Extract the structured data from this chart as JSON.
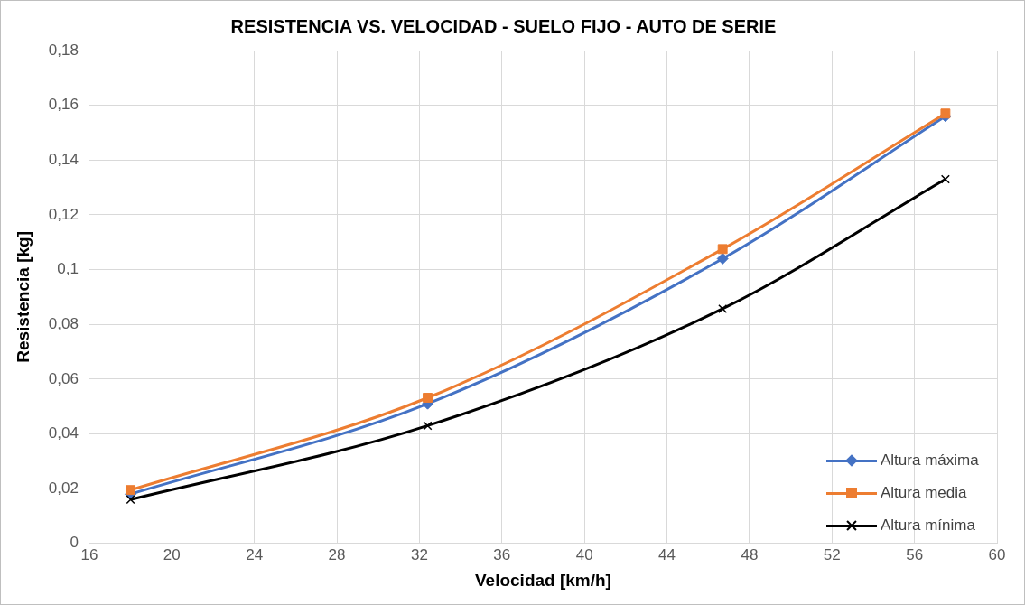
{
  "chart_data": {
    "type": "line",
    "title": "RESISTENCIA VS. VELOCIDAD - SUELO FIJO - AUTO DE SERIE",
    "xlabel": "Velocidad [km/h]",
    "ylabel": "Resistencia [kg]",
    "x": [
      18.0,
      32.4,
      46.7,
      57.5
    ],
    "series": [
      {
        "name": "Altura máxima",
        "color": "#4472c4",
        "marker": "diamond",
        "values": [
          0.018,
          0.051,
          0.104,
          0.156
        ]
      },
      {
        "name": "Altura media",
        "color": "#ed7d31",
        "marker": "square",
        "values": [
          0.0195,
          0.0532,
          0.1075,
          0.157
        ]
      },
      {
        "name": "Altura mínima",
        "color": "#000000",
        "marker": "cross",
        "values": [
          0.016,
          0.043,
          0.0857,
          0.133
        ]
      }
    ],
    "xlim": [
      16,
      60
    ],
    "xticks": [
      16,
      20,
      24,
      28,
      32,
      36,
      40,
      44,
      48,
      52,
      56,
      60
    ],
    "ylim": [
      0,
      0.18
    ],
    "yticks": [
      0,
      {
        "value": 0.02,
        "label": "0,02"
      },
      {
        "value": 0.04,
        "label": "0,04"
      },
      {
        "value": 0.06,
        "label": "0,06"
      },
      {
        "value": 0.08,
        "label": "0,08"
      },
      {
        "value": 0.1,
        "label": "0,1"
      },
      {
        "value": 0.12,
        "label": "0,12"
      },
      {
        "value": 0.14,
        "label": "0,14"
      },
      {
        "value": 0.16,
        "label": "0,16"
      },
      {
        "value": 0.18,
        "label": "0,18"
      }
    ],
    "grid": true,
    "legend": "bottom right",
    "line_style": "solid"
  }
}
